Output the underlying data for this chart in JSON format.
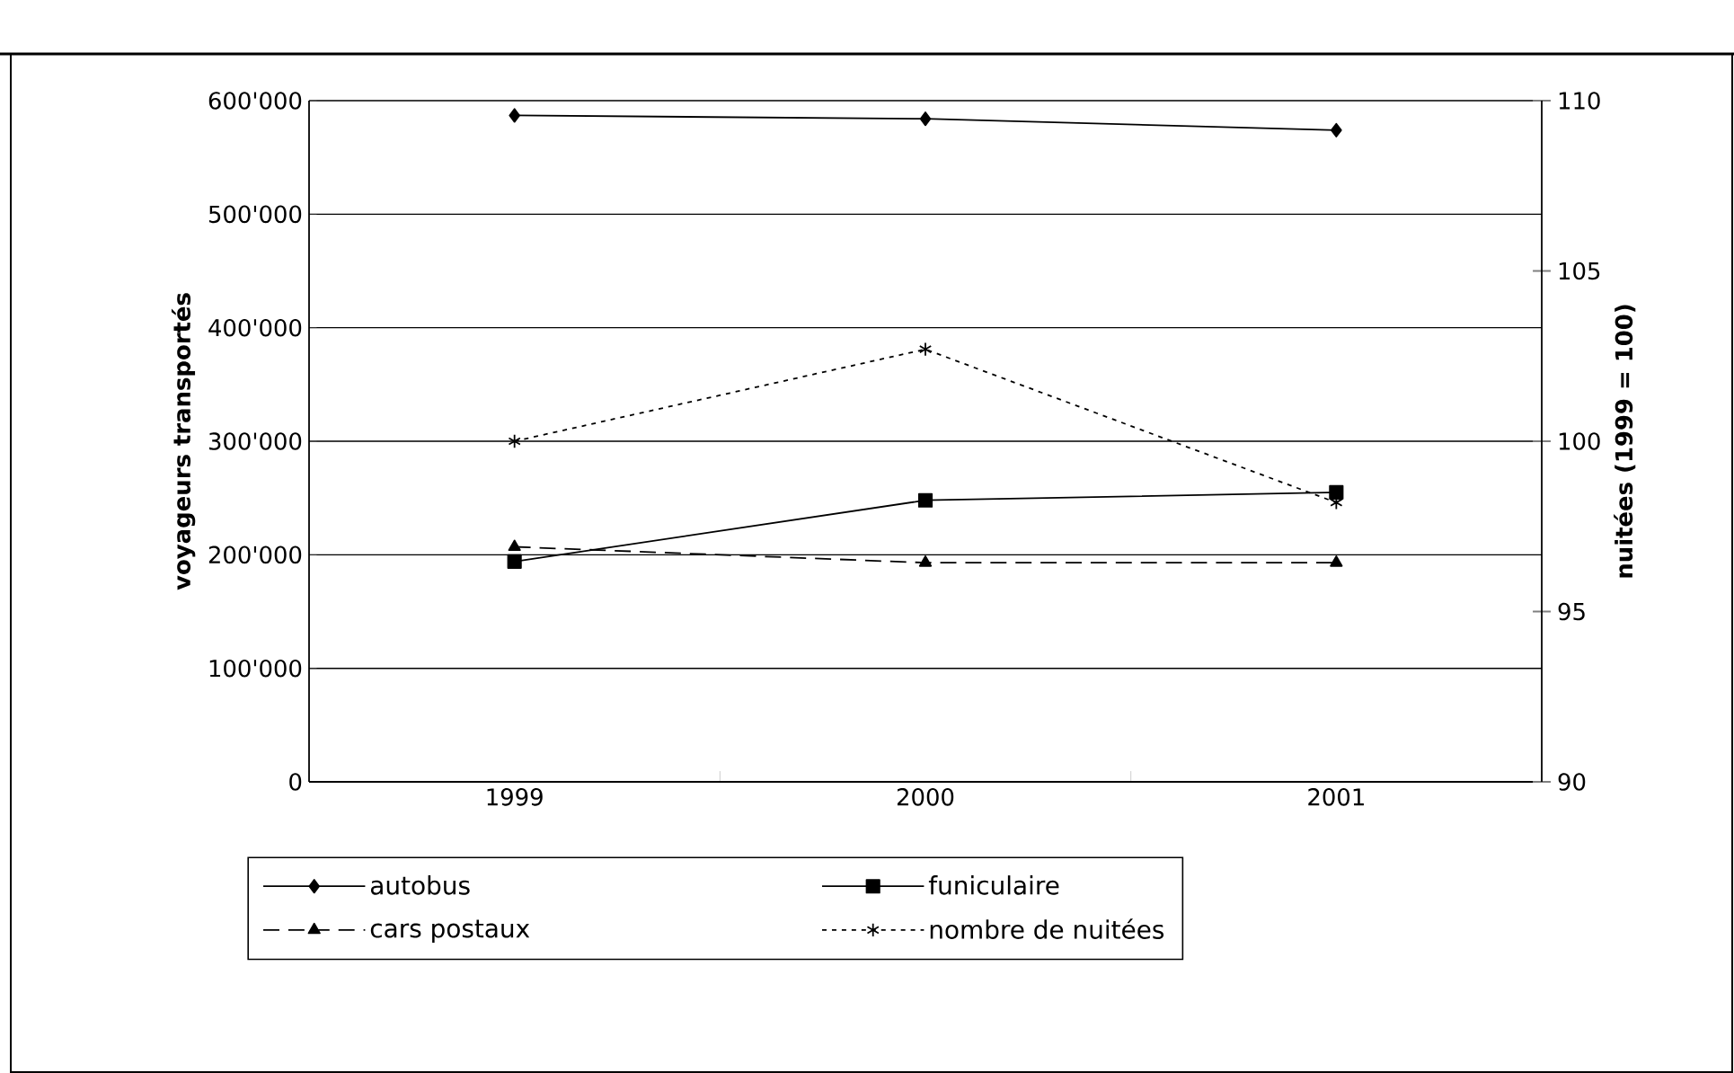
{
  "chart_data": {
    "type": "line",
    "categories": [
      "1999",
      "2000",
      "2001"
    ],
    "ylabel": "voyageurs transportés",
    "y2label": "nuitées (1999 = 100)",
    "ylim": [
      0,
      600000
    ],
    "yticks": [
      {
        "value": 0,
        "label": "0"
      },
      {
        "value": 100000,
        "label": "100'000"
      },
      {
        "value": 200000,
        "label": "200'000"
      },
      {
        "value": 300000,
        "label": "300'000"
      },
      {
        "value": 400000,
        "label": "400'000"
      },
      {
        "value": 500000,
        "label": "500'000"
      },
      {
        "value": 600000,
        "label": "600'000"
      }
    ],
    "y2lim": [
      90,
      110
    ],
    "y2ticks": [
      90,
      95,
      100,
      105,
      110
    ],
    "grid": "y",
    "legend": "bottom",
    "series": [
      {
        "name": "autobus",
        "color": "#000000",
        "marker": "diamond",
        "line_style": "solid",
        "values": [
          587000,
          584000,
          574000
        ]
      },
      {
        "name": "funiculaire",
        "color": "#000000",
        "marker": "square",
        "line_style": "solid",
        "values": [
          194000,
          248000,
          255000
        ]
      },
      {
        "name": "cars postaux",
        "color": "#000000",
        "marker": "triangle",
        "line_style": "dashed",
        "values": [
          207000,
          193000,
          193000
        ]
      },
      {
        "name": "nombre de nuitées",
        "color": "#000000",
        "marker": "cross",
        "line_style": "dotted",
        "axis": "y2",
        "values": [
          100,
          102.7,
          98.2
        ]
      }
    ]
  }
}
